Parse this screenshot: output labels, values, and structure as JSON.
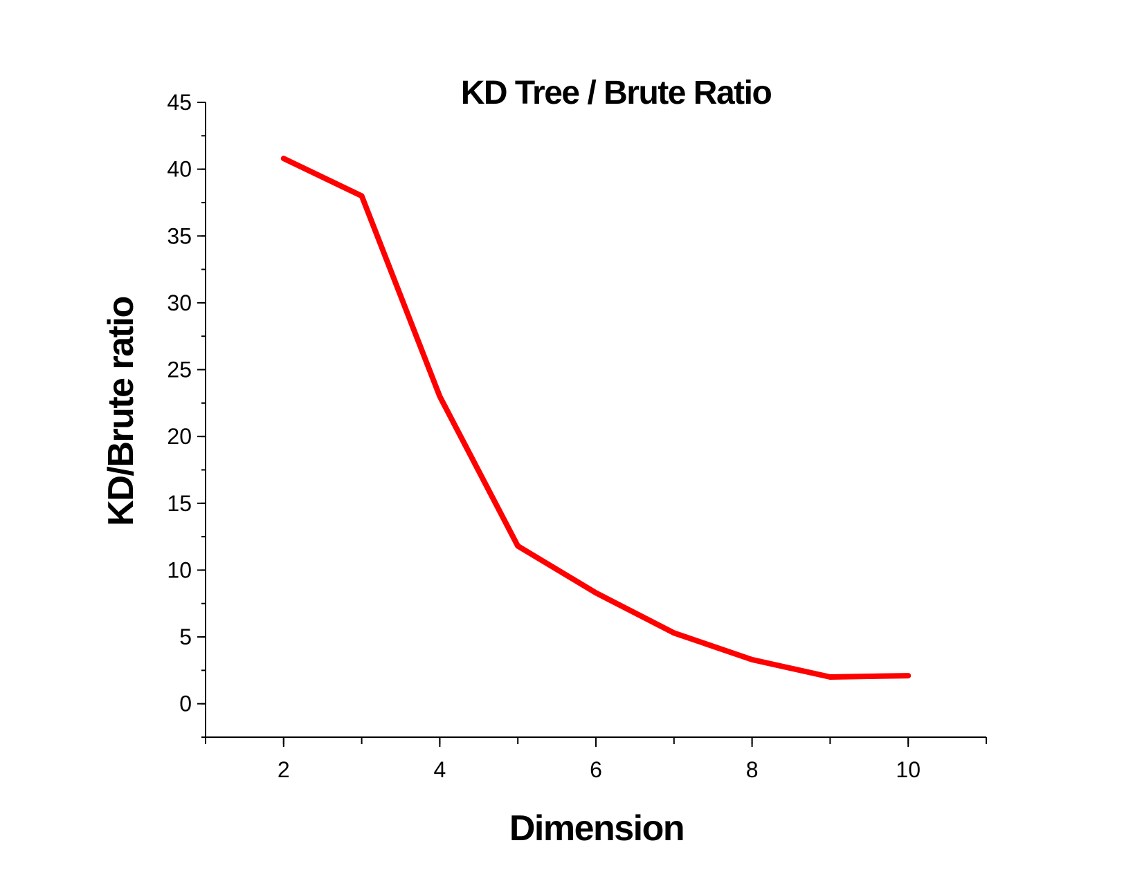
{
  "chart_data": {
    "type": "line",
    "title": "KD Tree / Brute Ratio",
    "xlabel": "Dimension",
    "ylabel": "KD/Brute ratio",
    "xlim": [
      1,
      11
    ],
    "ylim": [
      -2.5,
      45
    ],
    "xticks": [
      2,
      4,
      6,
      8,
      10
    ],
    "yticks": [
      0,
      5,
      10,
      15,
      20,
      25,
      30,
      35,
      40,
      45
    ],
    "x_minor_step": 1,
    "y_minor_step": 2.5,
    "grid": false,
    "legend": "none",
    "series": [
      {
        "color": "#ff0000",
        "x": [
          2,
          3,
          4,
          5,
          6,
          7,
          8,
          9,
          10
        ],
        "y": [
          40.8,
          38.0,
          23.0,
          11.8,
          8.3,
          5.3,
          3.3,
          2.0,
          2.1
        ]
      }
    ]
  }
}
